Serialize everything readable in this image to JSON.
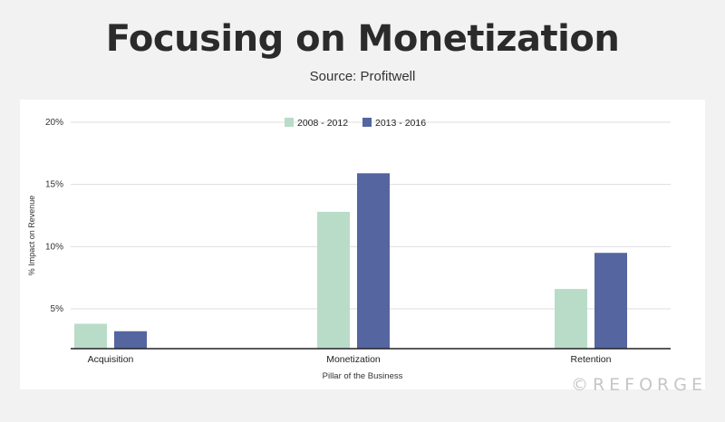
{
  "title": "Focusing on Monetization",
  "subtitle": "Source: Profitwell",
  "watermark": "©REFORGE",
  "chart_data": {
    "type": "bar",
    "categories": [
      "Acquisition",
      "Monetization",
      "Retention"
    ],
    "series": [
      {
        "name": "2008 - 2012",
        "values": [
          3.8,
          12.8,
          6.6
        ],
        "color": "#b9dcc9"
      },
      {
        "name": "2013 - 2016",
        "values": [
          3.2,
          15.9,
          9.5
        ],
        "color": "#5565a0"
      }
    ],
    "xlabel": "Pillar of the Business",
    "ylabel": "% Impact on Revenue",
    "ylim": [
      1.8,
      20
    ],
    "yticks": [
      5,
      10,
      15,
      20
    ],
    "ytick_labels": [
      "5%",
      "10%",
      "15%",
      "20%"
    ],
    "grid": true,
    "legend_position": "top-center"
  }
}
